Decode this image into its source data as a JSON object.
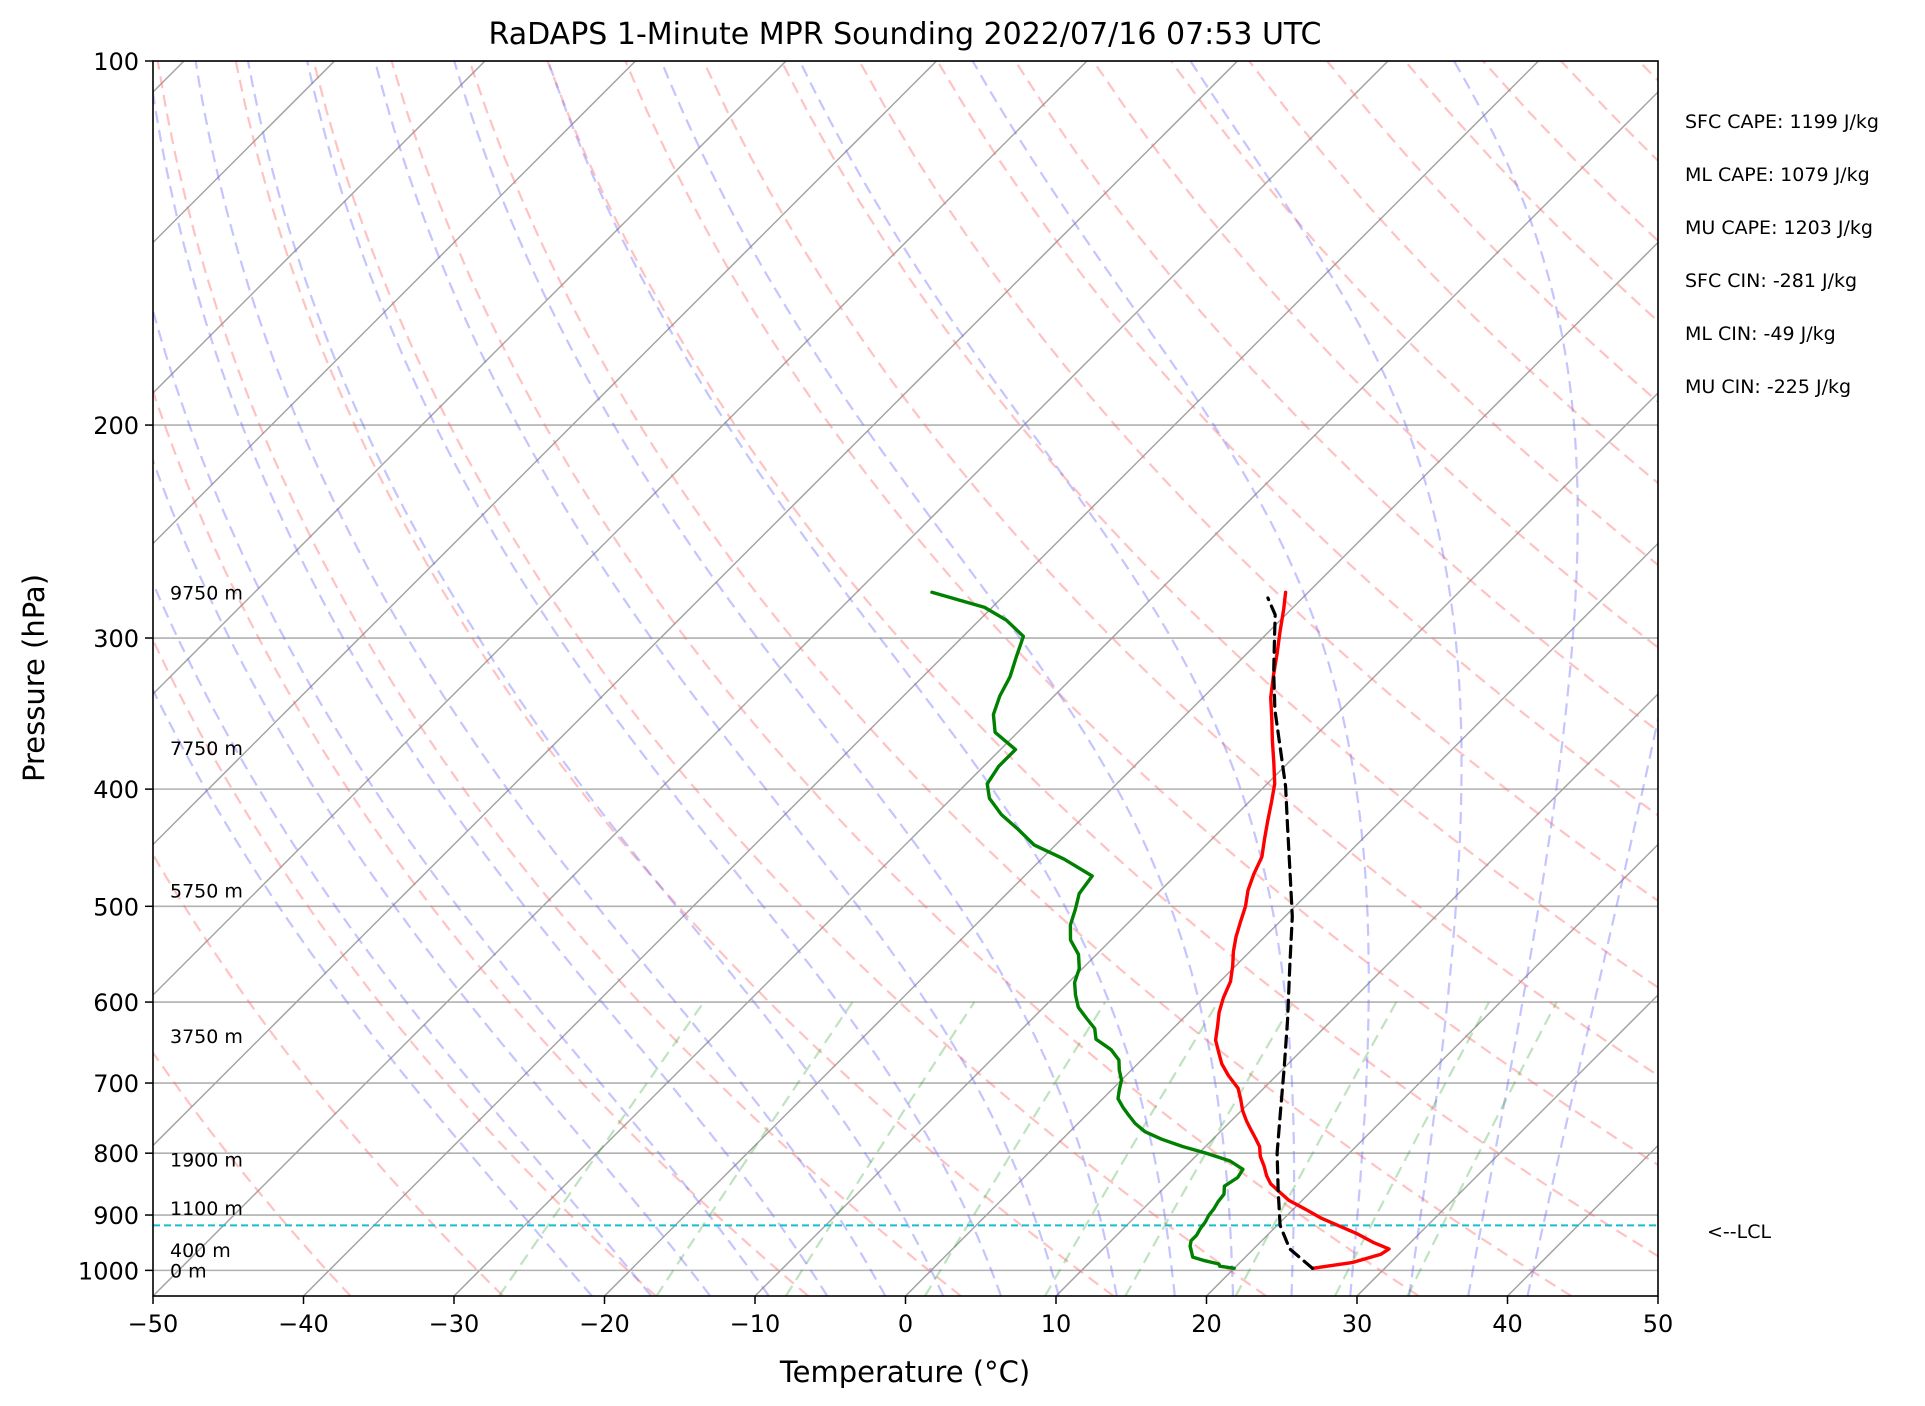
{
  "chart_data": {
    "type": "line",
    "title": "RaDAPS 1-Minute MPR Sounding 2022/07/16 07:53 UTC",
    "xlabel": "Temperature (°C)",
    "ylabel": "Pressure (hPa)",
    "xlim": [
      -50,
      50
    ],
    "ylim": [
      1050,
      100
    ],
    "y_scale": "log",
    "skew_t": true,
    "x_ticks": [
      "−50",
      "−40",
      "−30",
      "−20",
      "−10",
      "0",
      "10",
      "20",
      "30",
      "40",
      "50"
    ],
    "y_ticks": [
      "100",
      "200",
      "300",
      "400",
      "500",
      "600",
      "700",
      "800",
      "900",
      "1000"
    ],
    "height_labels": [
      {
        "text": "9750 m",
        "p": 275
      },
      {
        "text": "7750 m",
        "p": 370
      },
      {
        "text": "5750 m",
        "p": 485
      },
      {
        "text": "3750 m",
        "p": 640
      },
      {
        "text": "1900 m",
        "p": 810
      },
      {
        "text": "1100 m",
        "p": 888
      },
      {
        "text": "400 m",
        "p": 962
      },
      {
        "text": "0 m",
        "p": 1000
      }
    ],
    "indices": [
      "SFC CAPE: 1199 J/kg",
      "ML CAPE: 1079 J/kg",
      "MU CAPE: 1203 J/kg",
      "SFC CIN: -281 J/kg",
      "ML CIN: -49 J/kg",
      "MU CIN: -225 J/kg"
    ],
    "lcl": {
      "label": "<--LCL",
      "p": 918,
      "color": "#17becf"
    },
    "series": [
      {
        "color": "#ff0000",
        "points": [
          [
            25.2,
            996
          ],
          [
            27.5,
            985
          ],
          [
            28.8,
            970
          ],
          [
            29.0,
            960
          ],
          [
            27.5,
            948
          ],
          [
            25.8,
            932
          ],
          [
            24.3,
            920
          ],
          [
            22.4,
            905
          ],
          [
            20.8,
            890
          ],
          [
            19.1,
            875
          ],
          [
            18.0,
            862
          ],
          [
            16.8,
            848
          ],
          [
            16.0,
            835
          ],
          [
            15.2,
            820
          ],
          [
            14.3,
            805
          ],
          [
            13.6,
            790
          ],
          [
            12.8,
            778
          ],
          [
            11.9,
            765
          ],
          [
            11.0,
            752
          ],
          [
            10.1,
            738
          ],
          [
            9.2,
            722
          ],
          [
            8.3,
            707
          ],
          [
            6.8,
            690
          ],
          [
            5.6,
            675
          ],
          [
            4.6,
            660
          ],
          [
            3.6,
            645
          ],
          [
            2.8,
            628
          ],
          [
            2.0,
            612
          ],
          [
            1.3,
            595
          ],
          [
            0.7,
            577
          ],
          [
            -0.2,
            560
          ],
          [
            -1.1,
            545
          ],
          [
            -1.9,
            530
          ],
          [
            -2.6,
            515
          ],
          [
            -3.3,
            500
          ],
          [
            -4.2,
            485
          ],
          [
            -4.9,
            470
          ],
          [
            -5.5,
            455
          ],
          [
            -6.5,
            440
          ],
          [
            -7.5,
            425
          ],
          [
            -8.5,
            410
          ],
          [
            -9.5,
            396
          ],
          [
            -11.0,
            380
          ],
          [
            -12.5,
            365
          ],
          [
            -14.0,
            350
          ],
          [
            -15.5,
            336
          ],
          [
            -16.8,
            322
          ],
          [
            -18.0,
            309
          ],
          [
            -19.3,
            296
          ],
          [
            -20.5,
            284
          ],
          [
            -21.5,
            275
          ]
        ]
      },
      {
        "color": "#008000",
        "points": [
          [
            20.0,
            996
          ],
          [
            18.9,
            992
          ],
          [
            18.7,
            988
          ],
          [
            17.4,
            981
          ],
          [
            16.5,
            975
          ],
          [
            16.1,
            966
          ],
          [
            15.6,
            955
          ],
          [
            15.3,
            945
          ],
          [
            15.3,
            935
          ],
          [
            15.1,
            923
          ],
          [
            15.0,
            912
          ],
          [
            14.8,
            901
          ],
          [
            14.7,
            890
          ],
          [
            14.5,
            877
          ],
          [
            14.4,
            865
          ],
          [
            13.9,
            852
          ],
          [
            14.2,
            838
          ],
          [
            14.0,
            825
          ],
          [
            12.6,
            812
          ],
          [
            10.5,
            800
          ],
          [
            8.5,
            790
          ],
          [
            6.6,
            779
          ],
          [
            5.0,
            768
          ],
          [
            3.8,
            756
          ],
          [
            2.8,
            744
          ],
          [
            1.9,
            733
          ],
          [
            1.0,
            721
          ],
          [
            0.5,
            709
          ],
          [
            0.0,
            696
          ],
          [
            -0.8,
            683
          ],
          [
            -1.5,
            670
          ],
          [
            -2.7,
            657
          ],
          [
            -4.4,
            644
          ],
          [
            -5.2,
            631
          ],
          [
            -6.4,
            619
          ],
          [
            -7.7,
            606
          ],
          [
            -8.7,
            592
          ],
          [
            -9.6,
            578
          ],
          [
            -10.2,
            563
          ],
          [
            -11.2,
            548
          ],
          [
            -12.7,
            533
          ],
          [
            -13.7,
            518
          ],
          [
            -14.4,
            503
          ],
          [
            -15.2,
            488
          ],
          [
            -15.5,
            472
          ],
          [
            -18.5,
            457
          ],
          [
            -21.4,
            445
          ],
          [
            -23.5,
            432
          ],
          [
            -25.6,
            420
          ],
          [
            -27.5,
            407
          ],
          [
            -28.6,
            396
          ],
          [
            -29.0,
            383
          ],
          [
            -29.0,
            371
          ],
          [
            -31.5,
            359
          ],
          [
            -32.8,
            347
          ],
          [
            -33.6,
            335
          ],
          [
            -34.2,
            323
          ],
          [
            -35.1,
            311
          ],
          [
            -36.0,
            299
          ],
          [
            -38.2,
            290
          ],
          [
            -40.5,
            283
          ],
          [
            -45.0,
            275
          ]
        ]
      },
      {
        "color": "#000000",
        "dashed": true,
        "points": [
          [
            25.2,
            996
          ],
          [
            22.4,
            960
          ],
          [
            20.2,
            918
          ],
          [
            17.8,
            860
          ],
          [
            15.2,
            800
          ],
          [
            12.7,
            740
          ],
          [
            10.0,
            680
          ],
          [
            7.0,
            620
          ],
          [
            3.6,
            560
          ],
          [
            0.5,
            510
          ],
          [
            -2.5,
            470
          ],
          [
            -5.6,
            432
          ],
          [
            -8.6,
            398
          ],
          [
            -11.5,
            370
          ],
          [
            -14.4,
            344
          ],
          [
            -17.0,
            320
          ],
          [
            -19.2,
            300
          ],
          [
            -20.7,
            287
          ],
          [
            -22.3,
            278
          ]
        ]
      }
    ]
  }
}
